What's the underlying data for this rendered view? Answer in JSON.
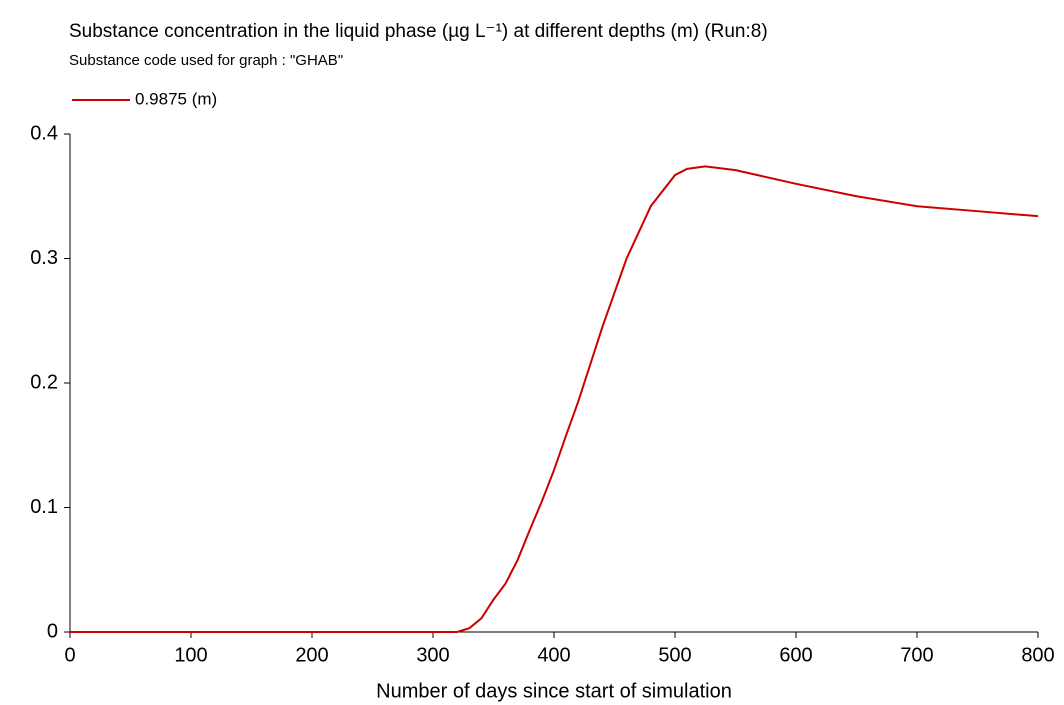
{
  "chart_data": {
    "type": "line",
    "title": "Substance concentration in the liquid phase (µg L⁻¹) at different depths (m) (Run:8)",
    "subtitle": "Substance code used for graph : \"GHAB\"",
    "xlabel": "Number of days since start of simulation",
    "x": [
      0,
      100,
      200,
      300,
      320,
      330,
      340,
      350,
      360,
      370,
      380,
      390,
      400,
      410,
      420,
      440,
      460,
      480,
      500,
      510,
      525,
      550,
      600,
      650,
      700,
      750,
      800
    ],
    "series": [
      {
        "name": "0.9875 (m)",
        "color": "#cc0000",
        "values": [
          0,
          0,
          0,
          0,
          0,
          0.003,
          0.011,
          0.026,
          0.039,
          0.058,
          0.082,
          0.105,
          0.13,
          0.158,
          0.185,
          0.245,
          0.3,
          0.342,
          0.367,
          0.372,
          0.374,
          0.371,
          0.36,
          0.35,
          0.342,
          0.338,
          0.334
        ]
      }
    ],
    "xlim": [
      0,
      800
    ],
    "xticks": [
      0,
      100,
      200,
      300,
      400,
      500,
      600,
      700,
      800
    ],
    "ylim": [
      0,
      0.4
    ],
    "yticks": [
      0,
      0.1,
      0.2,
      0.3,
      0.4
    ],
    "legend": "top-left",
    "grid": false
  }
}
